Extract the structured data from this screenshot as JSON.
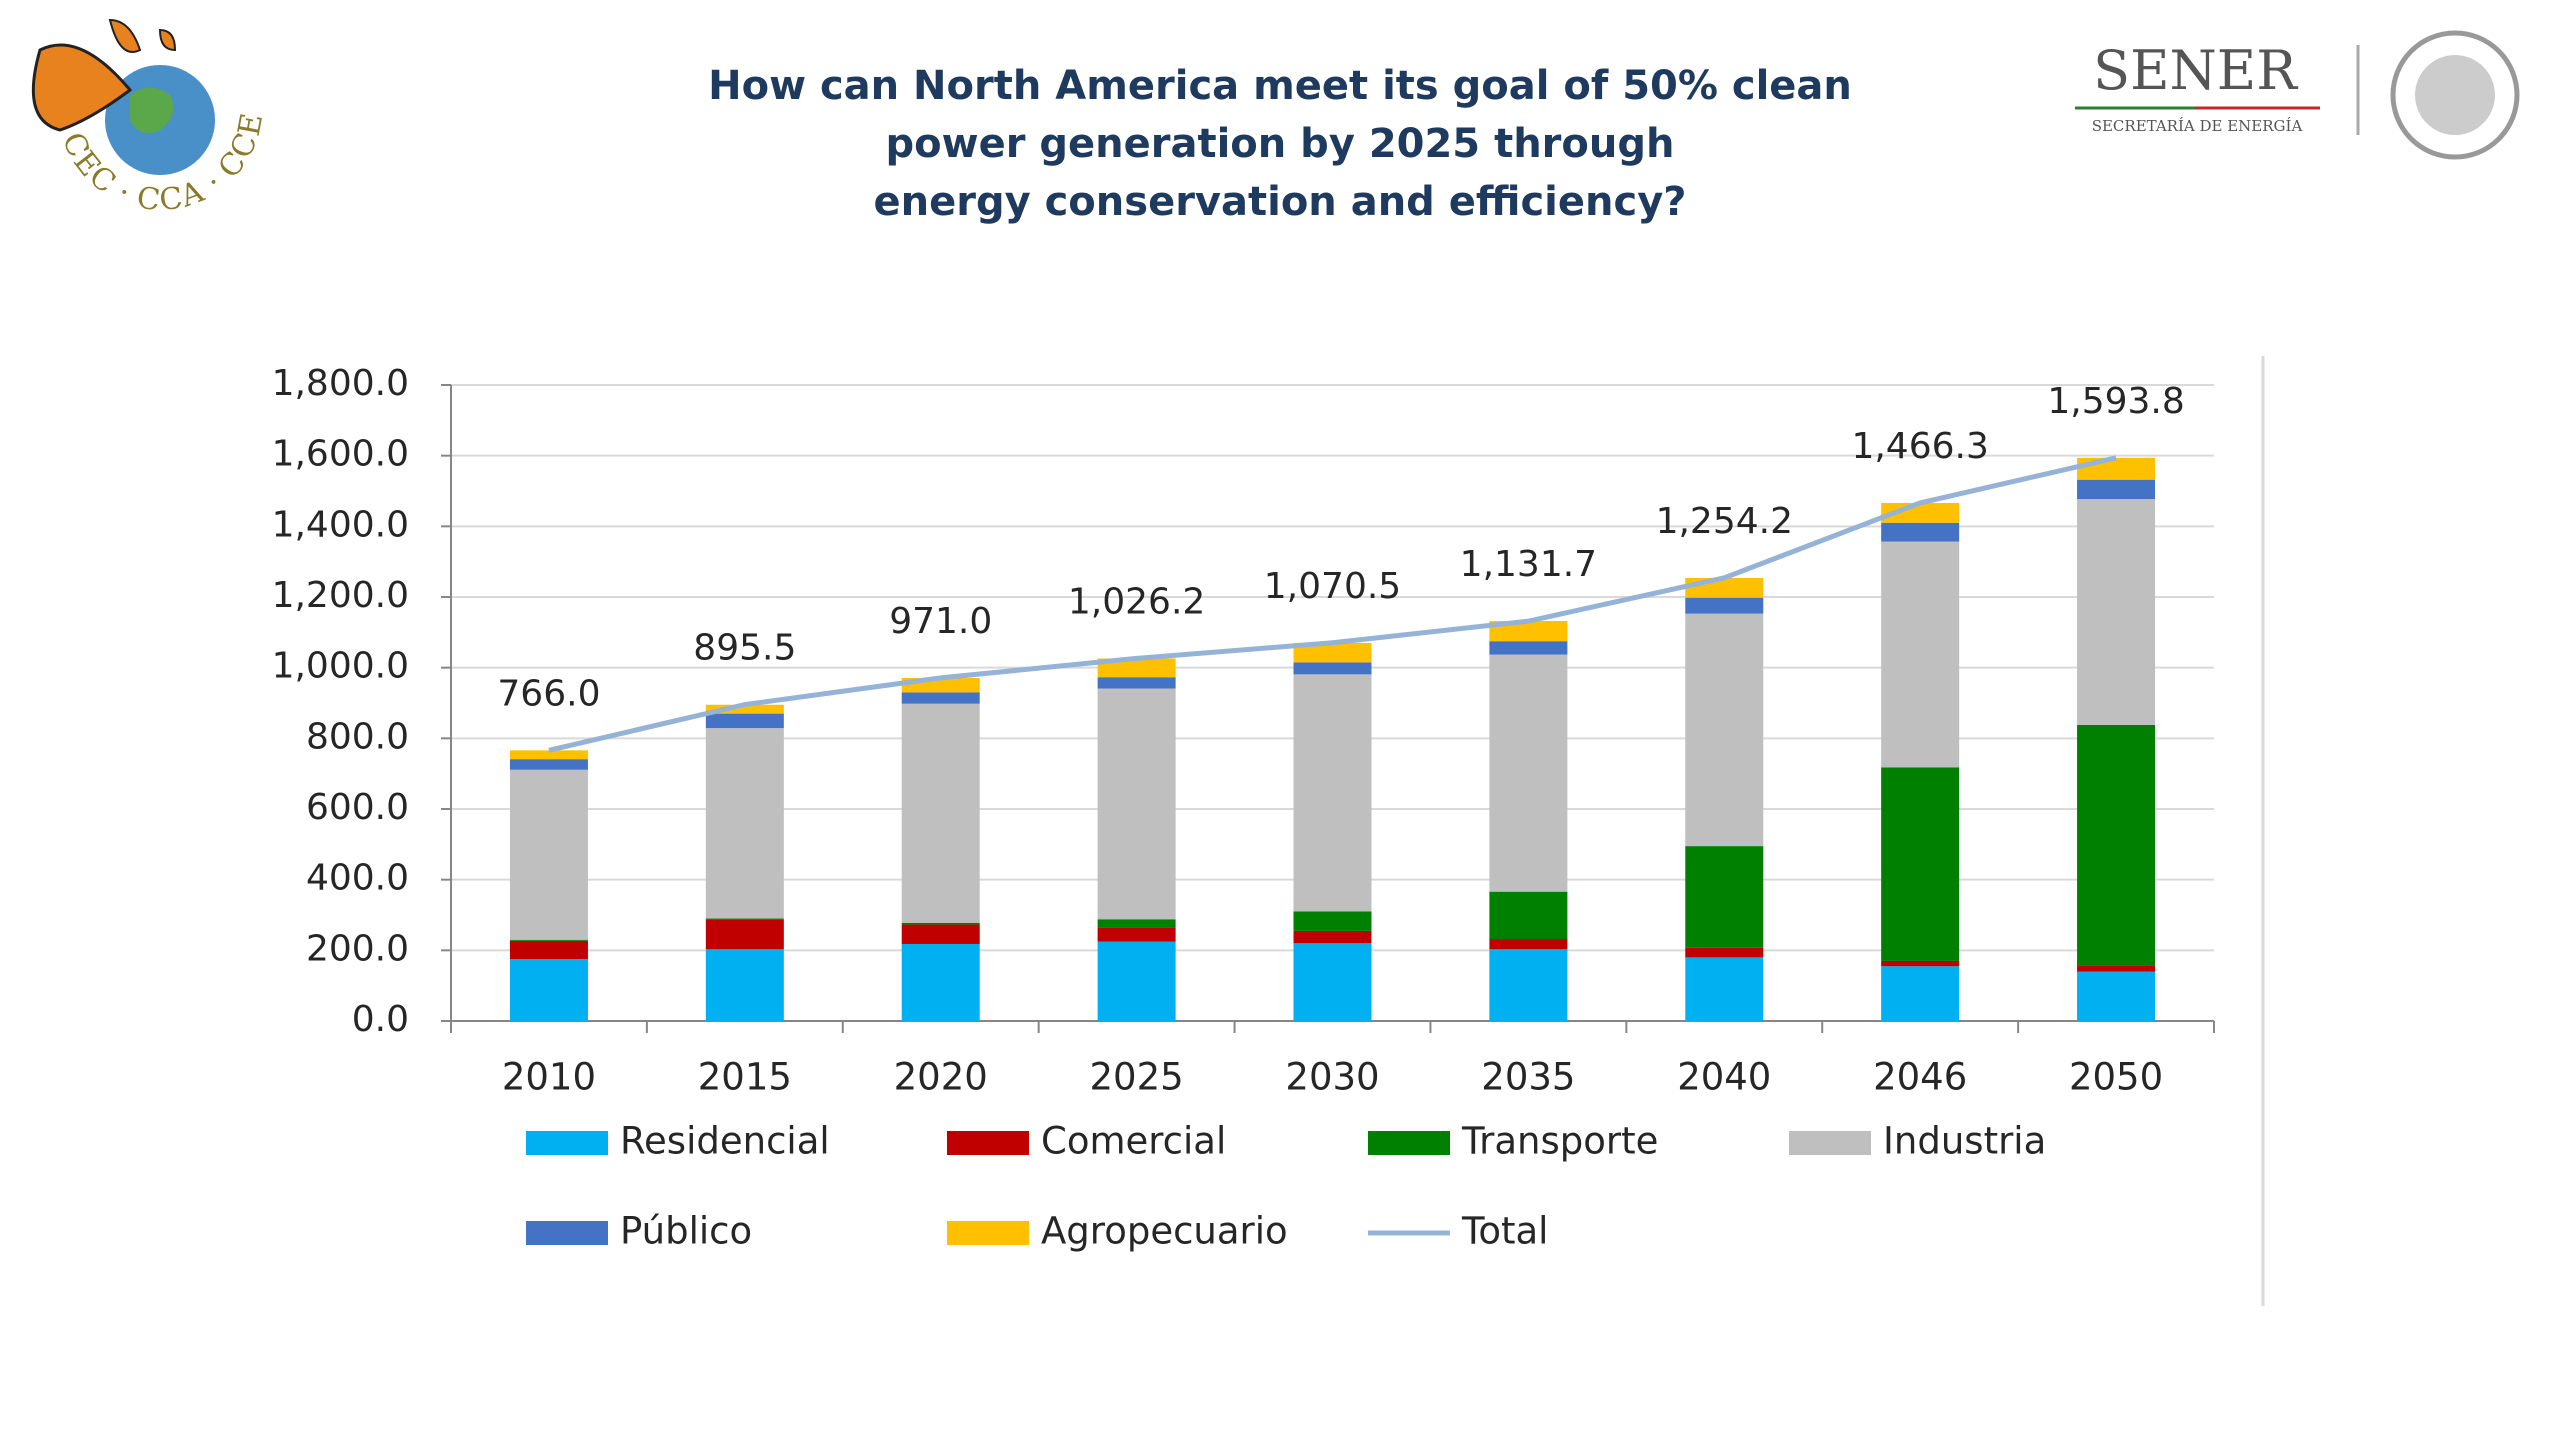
{
  "logos": {
    "left": "CEC · CCA · CCE",
    "right": "SENER",
    "right_sub": "SECRETARÍA DE ENERGÍA"
  },
  "chart_data": {
    "type": "bar",
    "stacked": true,
    "title": [
      "How can North America meet its goal of 50% clean",
      "power generation by 2025 through",
      "energy conservation and efficiency?"
    ],
    "categories": [
      "2010",
      "2015",
      "2020",
      "2025",
      "2030",
      "2035",
      "2040",
      "2046",
      "2050"
    ],
    "ylim": [
      0,
      1800
    ],
    "yticks": [
      {
        "value": 0,
        "label": "0.0"
      },
      {
        "value": 200,
        "label": "200.0"
      },
      {
        "value": 400,
        "label": "400.0"
      },
      {
        "value": 600,
        "label": "600.0"
      },
      {
        "value": 800,
        "label": "800.0"
      },
      {
        "value": 1000,
        "label": "1,000.0"
      },
      {
        "value": 1200,
        "label": "1,200.0"
      },
      {
        "value": 1400,
        "label": "1,400.0"
      },
      {
        "value": 1600,
        "label": "1,600.0"
      },
      {
        "value": 1800,
        "label": "1,800.0"
      }
    ],
    "grid": true,
    "series": [
      {
        "name": "Residencial",
        "type": "bar",
        "color": "#00b0f0",
        "values": [
          175,
          203,
          218,
          225,
          220,
          203,
          180,
          155,
          140
        ]
      },
      {
        "name": "Comercial",
        "type": "bar",
        "color": "#c00000",
        "values": [
          52,
          84,
          55,
          40,
          35,
          29,
          27,
          15,
          18
        ]
      },
      {
        "name": "Transporte",
        "type": "bar",
        "color": "#008000",
        "values": [
          3,
          3,
          5,
          23,
          55,
          134,
          288,
          548,
          680
        ]
      },
      {
        "name": "Industria",
        "type": "bar",
        "color": "#bfbfbf",
        "values": [
          481,
          539,
          620,
          653,
          671,
          671,
          658,
          639,
          639
        ]
      },
      {
        "name": "Público",
        "type": "bar",
        "color": "#4472c4",
        "values": [
          30,
          41,
          32,
          32,
          34,
          38,
          45,
          53,
          55
        ]
      },
      {
        "name": "Agropecuario",
        "type": "bar",
        "color": "#ffc000",
        "values": [
          25,
          25,
          41,
          53,
          55,
          57,
          56,
          56,
          62
        ]
      },
      {
        "name": "Total",
        "type": "line",
        "color": "#95b3d7",
        "values": [
          766.0,
          895.5,
          971.0,
          1026.2,
          1070.5,
          1131.7,
          1254.2,
          1466.3,
          1593.8
        ],
        "value_labels": [
          "766.0",
          "895.5",
          "971.0",
          "1,026.2",
          "1,070.5",
          "1,131.7",
          "1,254.2",
          "1,466.3",
          "1,593.8"
        ]
      }
    ]
  }
}
